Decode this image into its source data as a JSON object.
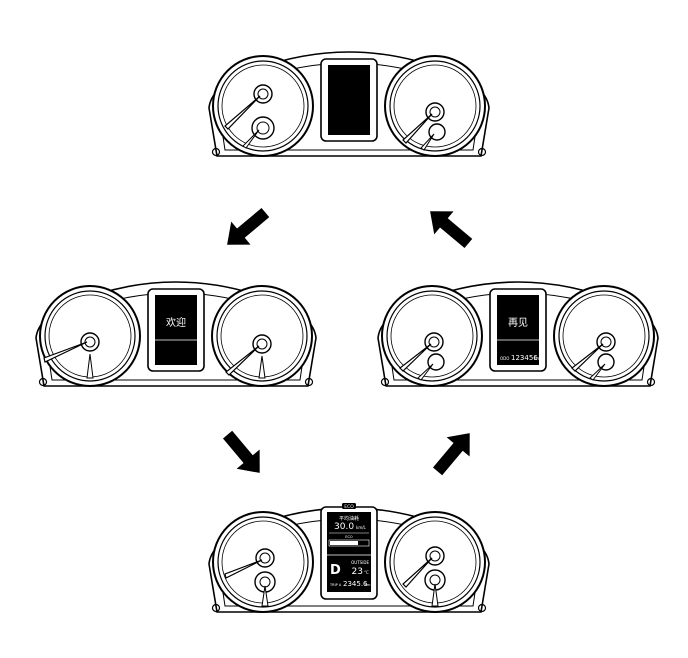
{
  "clusters": {
    "top": {
      "screen": "blank"
    },
    "left": {
      "screen": "welcome",
      "message": "欢迎"
    },
    "right": {
      "screen": "goodbye",
      "message": "再见",
      "odo_label": "ODO",
      "odo_value": "123456",
      "odo_unit": "km"
    },
    "bottom": {
      "screen": "info",
      "eco_badge": "ECO",
      "avg_label": "平均油耗",
      "avg_value": "30.0",
      "avg_unit": "km/L",
      "eco_bar_label": "ECO",
      "gear": "D",
      "outside_label": "OUTSIDE",
      "temp_value": "23",
      "temp_unit": "°C",
      "trip_label": "TRIP A",
      "trip_value": "2345.6",
      "trip_unit": "km"
    }
  },
  "flow": [
    {
      "from": "top",
      "to": "left",
      "direction": "down-left"
    },
    {
      "from": "left",
      "to": "bottom",
      "direction": "down-right"
    },
    {
      "from": "bottom",
      "to": "right",
      "direction": "up-right"
    },
    {
      "from": "right",
      "to": "top",
      "direction": "up-left"
    }
  ],
  "colors": {
    "ink": "#000000",
    "paper": "#ffffff",
    "screen": "#000000"
  }
}
